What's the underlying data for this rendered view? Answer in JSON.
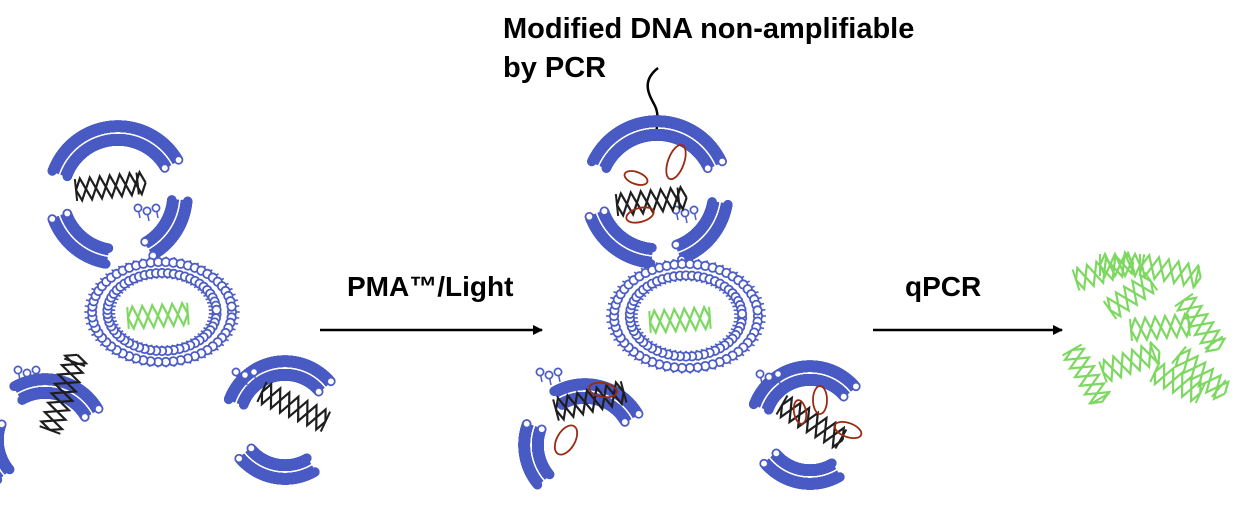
{
  "annotation": {
    "line1": "Modified DNA non-amplifiable",
    "line2": "by PCR"
  },
  "steps": [
    {
      "label": "PMA™/Light"
    },
    {
      "label": "qPCR"
    }
  ],
  "colors": {
    "membrane": "#4b5cc4",
    "dna_dead": "#1e1e1e",
    "dna_live": "#7cd860",
    "pma_adduct": "#9a2a12",
    "arrow": "#000000"
  }
}
